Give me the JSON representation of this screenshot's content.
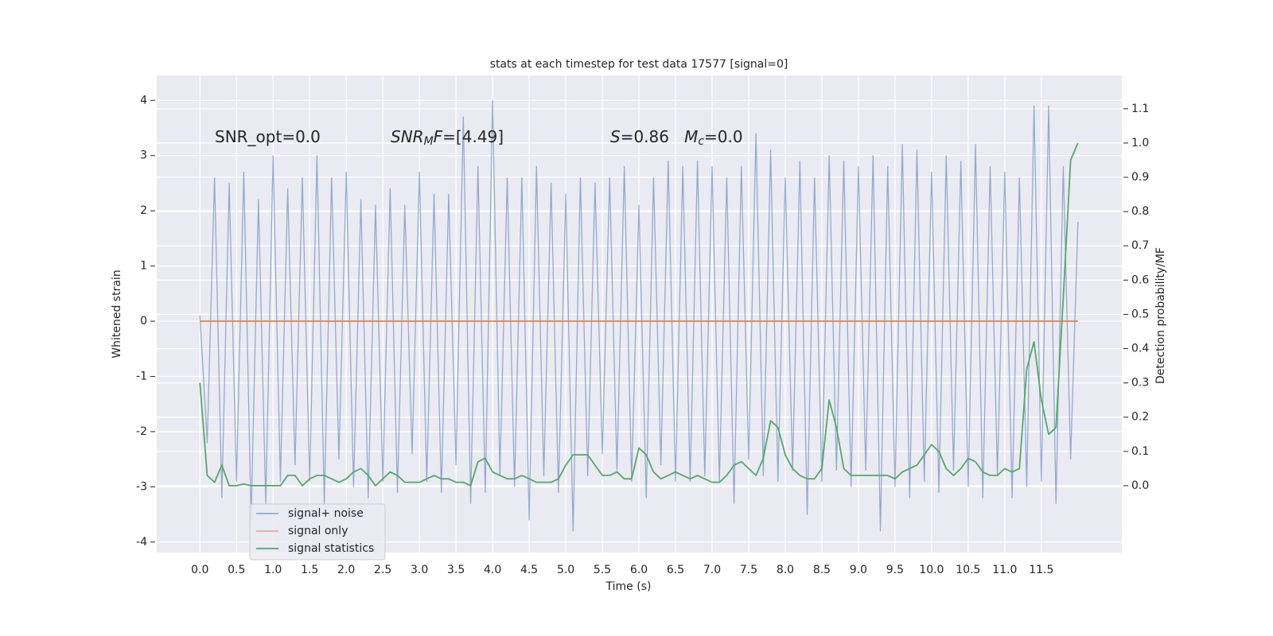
{
  "chart_data": {
    "type": "line",
    "title": "stats at each timestep for test data 17577 [signal=0]",
    "xlabel": "Time (s)",
    "ylabel": "Whitened strain",
    "y2label": "Detection probability/MF",
    "annotations": [
      {
        "parts": [
          {
            "text": "SNR_opt=0.0",
            "style": "normal"
          }
        ]
      },
      {
        "parts": [
          {
            "text": "SNR",
            "style": "italic"
          },
          {
            "text": "M",
            "style": "italic-sub"
          },
          {
            "text": "F",
            "style": "italic"
          },
          {
            "text": "=[4.49]",
            "style": "normal"
          }
        ]
      },
      {
        "parts": [
          {
            "text": "S",
            "style": "italic"
          },
          {
            "text": "=0.86   ",
            "style": "normal"
          },
          {
            "text": "M",
            "style": "italic"
          },
          {
            "text": "c",
            "style": "italic-sub"
          },
          {
            "text": "=0.0",
            "style": "normal"
          }
        ]
      }
    ],
    "x": [
      0,
      0.1,
      0.2,
      0.3,
      0.4,
      0.5,
      0.6,
      0.7,
      0.8,
      0.9,
      1,
      1.1,
      1.2,
      1.3,
      1.4,
      1.5,
      1.6,
      1.7,
      1.8,
      1.9,
      2,
      2.1,
      2.2,
      2.3,
      2.4,
      2.5,
      2.6,
      2.7,
      2.8,
      2.9,
      3,
      3.1,
      3.2,
      3.3,
      3.4,
      3.5,
      3.6,
      3.7,
      3.8,
      3.9,
      4,
      4.1,
      4.2,
      4.3,
      4.4,
      4.5,
      4.6,
      4.7,
      4.8,
      4.9,
      5,
      5.1,
      5.2,
      5.3,
      5.4,
      5.5,
      5.6,
      5.7,
      5.8,
      5.9,
      6,
      6.1,
      6.2,
      6.3,
      6.4,
      6.5,
      6.6,
      6.7,
      6.8,
      6.9,
      7,
      7.1,
      7.2,
      7.3,
      7.4,
      7.5,
      7.6,
      7.7,
      7.8,
      7.9,
      8,
      8.1,
      8.2,
      8.3,
      8.4,
      8.5,
      8.6,
      8.7,
      8.8,
      8.9,
      9,
      9.1,
      9.2,
      9.3,
      9.4,
      9.5,
      9.6,
      9.7,
      9.8,
      9.9,
      10,
      10.1,
      10.2,
      10.3,
      10.4,
      10.5,
      10.6,
      10.7,
      10.8,
      10.9,
      11,
      11.1,
      11.2,
      11.3,
      11.4,
      11.5,
      11.6,
      11.7,
      11.8,
      11.9,
      12
    ],
    "series": [
      {
        "name": "signal+ noise",
        "color": "#4c72b0",
        "axis": "y",
        "values": [
          0.1,
          -2.2,
          2.6,
          -3.2,
          2.5,
          -2.9,
          2.7,
          -3.6,
          2.2,
          -3.3,
          3.0,
          -2.9,
          2.4,
          -2.6,
          2.6,
          -2.9,
          3.0,
          -3.3,
          2.6,
          -2.5,
          2.7,
          -3.0,
          2.2,
          -3.2,
          2.1,
          -2.9,
          2.4,
          -3.1,
          2.1,
          -2.4,
          2.7,
          -2.9,
          2.3,
          -3.1,
          2.3,
          -2.6,
          3.7,
          -3.3,
          2.8,
          -3.1,
          4.0,
          -2.8,
          2.6,
          -3.0,
          2.6,
          -3.6,
          2.8,
          -2.8,
          2.5,
          -3.1,
          2.3,
          -3.8,
          2.6,
          -2.8,
          2.5,
          -2.4,
          2.6,
          -2.7,
          2.8,
          -2.9,
          2.1,
          -3.2,
          2.6,
          -2.6,
          2.9,
          -2.9,
          2.8,
          -2.9,
          2.9,
          -2.8,
          2.8,
          -2.9,
          2.6,
          -3.3,
          2.8,
          -2.5,
          3.4,
          -2.8,
          3.1,
          -2.9,
          2.6,
          -2.7,
          2.9,
          -3.5,
          2.6,
          -2.9,
          3.0,
          -2.7,
          2.9,
          -3.0,
          2.8,
          -2.7,
          3.0,
          -3.8,
          2.8,
          -3.0,
          3.2,
          -3.2,
          3.1,
          -2.9,
          2.7,
          -3.1,
          3.0,
          -2.7,
          2.9,
          -3.0,
          3.2,
          -3.2,
          2.8,
          -2.8,
          2.7,
          -3.2,
          2.6,
          -3.0,
          3.9,
          -2.9,
          3.9,
          -3.3,
          2.8,
          -2.5,
          1.8
        ]
      },
      {
        "name": "signal only",
        "color": "#dd8452",
        "axis": "y",
        "x": [
          0,
          12
        ],
        "values": [
          0,
          0
        ]
      },
      {
        "name": "signal statistics",
        "color": "#55a868",
        "axis": "y2",
        "values": [
          0.3,
          0.03,
          0.01,
          0.06,
          0,
          0,
          0.005,
          0,
          0,
          0,
          0,
          0,
          0.03,
          0.03,
          0,
          0.02,
          0.03,
          0.03,
          0.02,
          0.01,
          0.02,
          0.04,
          0.05,
          0.03,
          0,
          0.02,
          0.04,
          0.03,
          0.01,
          0.01,
          0.01,
          0.02,
          0.03,
          0.02,
          0.02,
          0.01,
          0.01,
          0,
          0.07,
          0.08,
          0.04,
          0.03,
          0.02,
          0.02,
          0.03,
          0.02,
          0.01,
          0.01,
          0.01,
          0.02,
          0.06,
          0.09,
          0.09,
          0.09,
          0.06,
          0.03,
          0.03,
          0.04,
          0.02,
          0.02,
          0.11,
          0.09,
          0.04,
          0.02,
          0.03,
          0.04,
          0.03,
          0.02,
          0.03,
          0.02,
          0.01,
          0.01,
          0.03,
          0.06,
          0.07,
          0.05,
          0.03,
          0.08,
          0.19,
          0.17,
          0.09,
          0.05,
          0.03,
          0.02,
          0.02,
          0.05,
          0.25,
          0.17,
          0.05,
          0.03,
          0.03,
          0.03,
          0.03,
          0.03,
          0.03,
          0.02,
          0.04,
          0.05,
          0.06,
          0.09,
          0.12,
          0.1,
          0.05,
          0.03,
          0.05,
          0.08,
          0.07,
          0.04,
          0.03,
          0.03,
          0.05,
          0.04,
          0.05,
          0.34,
          0.42,
          0.25,
          0.15,
          0.17,
          0.55,
          0.95,
          1.0
        ]
      }
    ],
    "xlim": [
      -0.59,
      12.6
    ],
    "ylim": [
      -4.19,
      4.45
    ],
    "y2lim": [
      -0.195,
      1.197
    ],
    "xticks": [
      {
        "value": 0,
        "label": "0.0"
      },
      0.5,
      {
        "value": 1,
        "label": "1.0"
      },
      1.5,
      {
        "value": 2,
        "label": "2.0"
      },
      2.5,
      {
        "value": 3,
        "label": "3.0"
      },
      3.5,
      {
        "value": 4,
        "label": "4.0"
      },
      4.5,
      {
        "value": 5,
        "label": "5.0"
      },
      5.5,
      {
        "value": 6,
        "label": "6.0"
      },
      6.5,
      {
        "value": 7,
        "label": "7.0"
      },
      7.5,
      {
        "value": 8,
        "label": "8.0"
      },
      8.5,
      {
        "value": 9,
        "label": "9.0"
      },
      9.5,
      {
        "value": 10,
        "label": "10.0"
      },
      10.5,
      {
        "value": 11,
        "label": "11.0"
      },
      11.5
    ],
    "yticks": [
      -4,
      -3,
      -2,
      -1,
      0,
      1,
      2,
      3,
      4
    ],
    "y2ticks": [
      {
        "value": 0,
        "label": "0.0"
      },
      0.1,
      0.2,
      0.3,
      0.4,
      0.5,
      0.6,
      0.7,
      0.8,
      0.9,
      {
        "value": 1,
        "label": "1.0"
      },
      1.1
    ],
    "grid": true,
    "legend": "lower left"
  }
}
